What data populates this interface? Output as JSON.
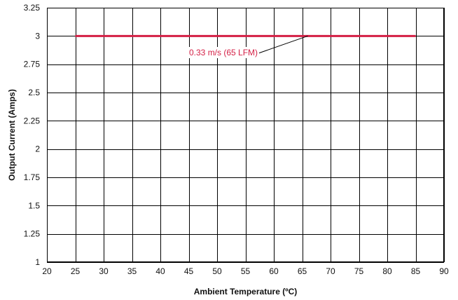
{
  "chart_data": {
    "type": "line",
    "xlabel": "Ambient Temperature (ºC)",
    "ylabel": "Output Current (Amps)",
    "xlim": [
      20,
      90
    ],
    "ylim": [
      1,
      3.25
    ],
    "x_ticks": [
      20,
      25,
      30,
      35,
      40,
      45,
      50,
      55,
      60,
      65,
      70,
      75,
      80,
      85,
      90
    ],
    "y_ticks": [
      1,
      1.25,
      1.5,
      1.75,
      2,
      2.25,
      2.5,
      2.75,
      3,
      3.25
    ],
    "y_tick_labels": [
      "1",
      "1.25",
      "1.5",
      "1.75",
      "2",
      "2.25",
      "2.5",
      "2.75",
      "3",
      "3.25"
    ],
    "grid": true,
    "series": [
      {
        "x": [
          25,
          85
        ],
        "y": [
          3,
          3
        ],
        "color": "#d41f45"
      }
    ],
    "annotations": [
      {
        "text": "0.33 m/s (65 LFM)",
        "target_x": 66,
        "target_y": 3,
        "color": "#d41f45"
      }
    ]
  }
}
